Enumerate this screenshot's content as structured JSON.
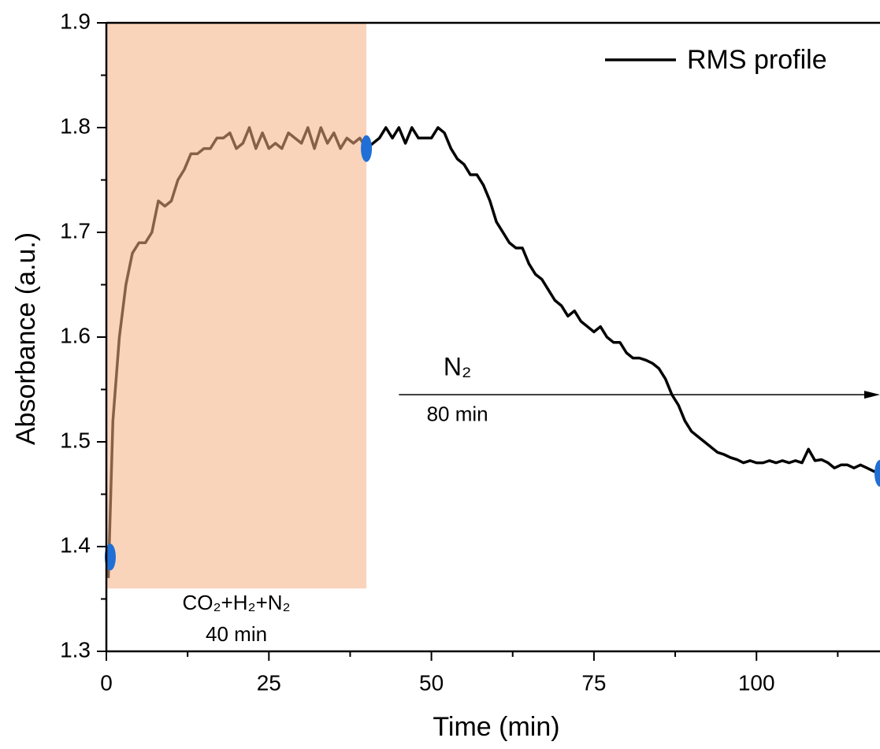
{
  "chart_data": {
    "type": "line",
    "x_label": "Time (min)",
    "y_label": "Absorbance (a.u.)",
    "xlim": [
      0,
      119
    ],
    "ylim": [
      1.3,
      1.9
    ],
    "xticks": [
      0,
      25,
      50,
      75,
      100
    ],
    "yticks": [
      1.3,
      1.4,
      1.5,
      1.6,
      1.7,
      1.8,
      1.9
    ],
    "legend_position": "upper right",
    "series": [
      {
        "name": "RMS profile",
        "color": "#000000",
        "x": [
          0.3,
          1,
          2,
          3,
          4,
          5,
          6,
          7,
          8,
          9,
          10,
          11,
          12,
          13,
          14,
          15,
          16,
          17,
          18,
          19,
          20,
          21,
          22,
          23,
          24,
          25,
          26,
          27,
          28,
          29,
          30,
          31,
          32,
          33,
          34,
          35,
          36,
          37,
          38,
          39,
          40,
          42,
          43,
          44,
          45,
          46,
          47,
          48,
          49,
          50,
          51,
          52,
          53,
          54,
          55,
          56,
          57,
          58,
          59,
          60,
          61,
          62,
          63,
          64,
          65,
          66,
          67,
          68,
          69,
          70,
          71,
          72,
          73,
          74,
          75,
          76,
          77,
          78,
          79,
          80,
          81,
          82,
          83,
          84,
          85,
          86,
          87,
          88,
          89,
          90,
          91,
          92,
          93,
          94,
          95,
          96,
          97,
          98,
          99,
          100,
          101,
          102,
          103,
          104,
          105,
          106,
          107,
          108,
          109,
          110,
          111,
          112,
          113,
          114,
          115,
          116,
          117,
          118,
          119
        ],
        "values": [
          1.37,
          1.52,
          1.6,
          1.65,
          1.68,
          1.69,
          1.69,
          1.7,
          1.73,
          1.725,
          1.73,
          1.75,
          1.76,
          1.775,
          1.775,
          1.78,
          1.78,
          1.79,
          1.79,
          1.795,
          1.78,
          1.785,
          1.8,
          1.78,
          1.795,
          1.78,
          1.785,
          1.78,
          1.795,
          1.79,
          1.785,
          1.8,
          1.78,
          1.8,
          1.785,
          1.795,
          1.78,
          1.79,
          1.785,
          1.79,
          1.78,
          1.79,
          1.8,
          1.79,
          1.8,
          1.785,
          1.8,
          1.79,
          1.79,
          1.79,
          1.8,
          1.795,
          1.78,
          1.77,
          1.765,
          1.755,
          1.755,
          1.745,
          1.73,
          1.71,
          1.7,
          1.69,
          1.685,
          1.685,
          1.67,
          1.66,
          1.655,
          1.645,
          1.635,
          1.63,
          1.62,
          1.625,
          1.615,
          1.61,
          1.605,
          1.61,
          1.6,
          1.595,
          1.595,
          1.585,
          1.58,
          1.58,
          1.578,
          1.575,
          1.57,
          1.56,
          1.545,
          1.535,
          1.52,
          1.51,
          1.505,
          1.5,
          1.495,
          1.49,
          1.488,
          1.485,
          1.483,
          1.48,
          1.482,
          1.48,
          1.48,
          1.482,
          1.48,
          1.482,
          1.48,
          1.482,
          1.48,
          1.493,
          1.482,
          1.483,
          1.48,
          1.475,
          1.478,
          1.478,
          1.475,
          1.478,
          1.475,
          1.472,
          1.47
        ]
      }
    ],
    "markers": {
      "color": "#1f6fd6",
      "x": [
        0.6,
        40,
        119
      ],
      "values": [
        1.39,
        1.78,
        1.47
      ]
    },
    "shade": {
      "color": "#f4b183",
      "x": [
        0,
        40
      ],
      "y": [
        1.36,
        1.9
      ]
    },
    "annotations": [
      {
        "text": "CO₂+H₂+N₂",
        "x": 20,
        "y": 1.345
      },
      {
        "text": "40 min",
        "x": 20,
        "y": 1.315
      },
      {
        "text": "N₂",
        "x": 54,
        "y": 1.57
      },
      {
        "text": "80 min",
        "x": 54,
        "y": 1.525
      }
    ],
    "arrow": {
      "x": [
        45,
        119
      ],
      "y": 1.545
    }
  }
}
